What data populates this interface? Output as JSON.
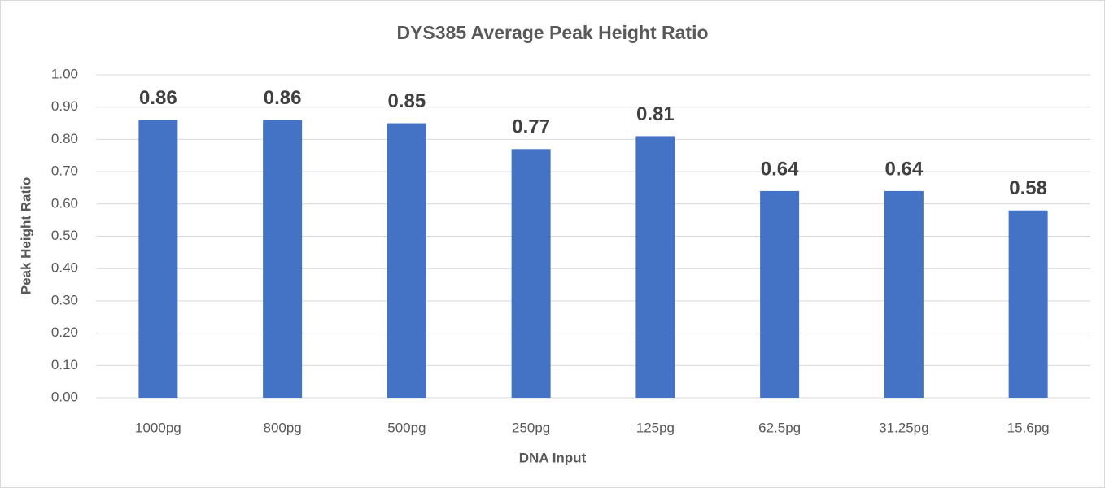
{
  "chart_data": {
    "type": "bar",
    "title": "DYS385 Average Peak Height Ratio",
    "x_label": "DNA Input",
    "y_label": "Peak Height Ratio",
    "categories": [
      "1000pg",
      "800pg",
      "500pg",
      "250pg",
      "125pg",
      "62.5pg",
      "31.25pg",
      "15.6pg"
    ],
    "values": [
      0.86,
      0.86,
      0.85,
      0.77,
      0.81,
      0.64,
      0.64,
      0.58
    ],
    "color": "#4472c4",
    "ylim": [
      0,
      1
    ],
    "yticks": [
      {
        "value": 0,
        "label": "0.00"
      },
      {
        "value": 0.1,
        "label": "0.10"
      },
      {
        "value": 0.2,
        "label": "0.20"
      },
      {
        "value": 0.3,
        "label": "0.30"
      },
      {
        "value": 0.4,
        "label": "0.40"
      },
      {
        "value": 0.5,
        "label": "0.50"
      },
      {
        "value": 0.6,
        "label": "0.60"
      },
      {
        "value": 0.7,
        "label": "0.70"
      },
      {
        "value": 0.8,
        "label": "0.80"
      },
      {
        "value": 0.9,
        "label": "0.90"
      },
      {
        "value": 1,
        "label": "1.00"
      }
    ],
    "grid": true
  }
}
